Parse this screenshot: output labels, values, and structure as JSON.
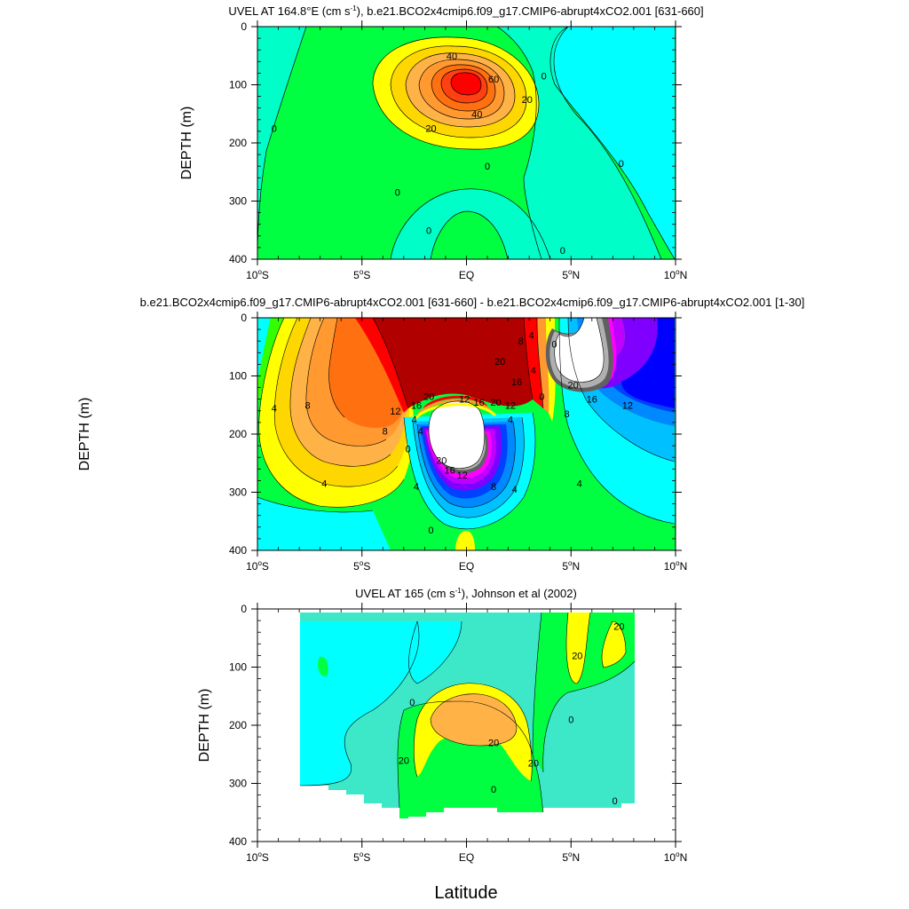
{
  "figure": {
    "x_title": "Latitude"
  },
  "chart_data": [
    {
      "type": "heatmap",
      "title": "UVEL AT 164.8°E (cm s-1), b.e21.BCO2x4cmip6.f09_g17.CMIP6-abrupt4xCO2.001 [631-660]",
      "title_main": "UVEL AT 164.8°E (cm s",
      "title_sup": "-1",
      "title_tail": "), b.e21.BCO2x4cmip6.f09_g17.CMIP6-abrupt4xCO2.001 [631-660]",
      "xlabel": "",
      "ylabel": "DEPTH (m)",
      "xlim": [
        -10,
        10
      ],
      "ylim": [
        400,
        0
      ],
      "x_ticks": [
        {
          "value": -10,
          "main": "10",
          "sup": "o",
          "tail": "S"
        },
        {
          "value": -5,
          "main": "5",
          "sup": "o",
          "tail": "S"
        },
        {
          "value": 0,
          "main": "EQ",
          "sup": "",
          "tail": ""
        },
        {
          "value": 5,
          "main": "5",
          "sup": "o",
          "tail": "N"
        },
        {
          "value": 10,
          "main": "10",
          "sup": "o",
          "tail": "N"
        }
      ],
      "y_ticks": [
        0,
        100,
        200,
        300,
        400
      ],
      "contour_labels": [
        {
          "text": "40",
          "lat": -0.7,
          "depth": 50
        },
        {
          "text": "60",
          "lat": 1.3,
          "depth": 90
        },
        {
          "text": "40",
          "lat": 0.5,
          "depth": 150
        },
        {
          "text": "20",
          "lat": -1.7,
          "depth": 175
        },
        {
          "text": "20",
          "lat": 2.9,
          "depth": 125
        },
        {
          "text": "0",
          "lat": 3.7,
          "depth": 85
        },
        {
          "text": "0",
          "lat": -9.2,
          "depth": 175
        },
        {
          "text": "0",
          "lat": -3.3,
          "depth": 285
        },
        {
          "text": "0",
          "lat": 1.0,
          "depth": 240
        },
        {
          "text": "0",
          "lat": -1.8,
          "depth": 350
        },
        {
          "text": "0",
          "lat": 4.6,
          "depth": 385
        },
        {
          "text": "0",
          "lat": 7.4,
          "depth": 235
        }
      ]
    },
    {
      "type": "heatmap",
      "title": "b.e21.BCO2x4cmip6.f09_g17.CMIP6-abrupt4xCO2.001 [631-660] - b.e21.BCO2x4cmip6.f09_g17.CMIP6-abrupt4xCO2.001 [1-30]",
      "title_main": "b.e21.BCO2x4cmip6.f09_g17.CMIP6-abrupt4xCO2.001 [631-660] - b.e21.BCO2x4cmip6.f09_g17.CMIP6-abrupt4xCO2.001 [1-30]",
      "title_sup": "",
      "title_tail": "",
      "xlabel": "",
      "ylabel": "DEPTH (m)",
      "xlim": [
        -10,
        10
      ],
      "ylim": [
        400,
        0
      ],
      "x_ticks": [
        {
          "value": -10,
          "main": "10",
          "sup": "o",
          "tail": "S"
        },
        {
          "value": -5,
          "main": "5",
          "sup": "o",
          "tail": "S"
        },
        {
          "value": 0,
          "main": "EQ",
          "sup": "",
          "tail": ""
        },
        {
          "value": 5,
          "main": "5",
          "sup": "o",
          "tail": "N"
        },
        {
          "value": 10,
          "main": "10",
          "sup": "o",
          "tail": "N"
        }
      ],
      "y_ticks": [
        0,
        100,
        200,
        300,
        400
      ],
      "contour_labels": [
        {
          "text": "4",
          "lat": -9.2,
          "depth": 155
        },
        {
          "text": "8",
          "lat": -7.6,
          "depth": 150
        },
        {
          "text": "12",
          "lat": -3.4,
          "depth": 160
        },
        {
          "text": "16",
          "lat": -2.4,
          "depth": 150
        },
        {
          "text": "20",
          "lat": -1.8,
          "depth": 135
        },
        {
          "text": "8",
          "lat": -3.9,
          "depth": 195
        },
        {
          "text": "4",
          "lat": -2.5,
          "depth": 175
        },
        {
          "text": "4",
          "lat": -6.8,
          "depth": 285
        },
        {
          "text": "0",
          "lat": -2.8,
          "depth": 225
        },
        {
          "text": "4",
          "lat": -2.2,
          "depth": 195
        },
        {
          "text": "12",
          "lat": -0.1,
          "depth": 140
        },
        {
          "text": "16",
          "lat": 0.6,
          "depth": 145
        },
        {
          "text": "20",
          "lat": 1.4,
          "depth": 145
        },
        {
          "text": "12",
          "lat": 2.1,
          "depth": 150
        },
        {
          "text": "4",
          "lat": 2.1,
          "depth": 175
        },
        {
          "text": "20",
          "lat": -1.2,
          "depth": 245
        },
        {
          "text": "16",
          "lat": -0.8,
          "depth": 262
        },
        {
          "text": "12",
          "lat": -0.2,
          "depth": 270
        },
        {
          "text": "8",
          "lat": 1.3,
          "depth": 290
        },
        {
          "text": "4",
          "lat": 2.3,
          "depth": 295
        },
        {
          "text": "4",
          "lat": -2.4,
          "depth": 290
        },
        {
          "text": "0",
          "lat": -1.7,
          "depth": 365
        },
        {
          "text": "20",
          "lat": 1.6,
          "depth": 75
        },
        {
          "text": "8",
          "lat": 2.6,
          "depth": 40
        },
        {
          "text": "4",
          "lat": 3.1,
          "depth": 30
        },
        {
          "text": "16",
          "lat": 2.4,
          "depth": 110
        },
        {
          "text": "4",
          "lat": 3.2,
          "depth": 90
        },
        {
          "text": "0",
          "lat": 3.6,
          "depth": 135
        },
        {
          "text": "0",
          "lat": 4.2,
          "depth": 45
        },
        {
          "text": "20",
          "lat": 5.1,
          "depth": 115
        },
        {
          "text": "16",
          "lat": 6.0,
          "depth": 140
        },
        {
          "text": "12",
          "lat": 7.7,
          "depth": 150
        },
        {
          "text": "8",
          "lat": 4.8,
          "depth": 165
        },
        {
          "text": "4",
          "lat": 5.4,
          "depth": 285
        }
      ]
    },
    {
      "type": "heatmap",
      "title": "UVEL AT 165 (cm s-1), Johnson et al (2002)",
      "title_main": "UVEL AT 165 (cm s",
      "title_sup": "-1",
      "title_tail": "), Johnson et al (2002)",
      "xlabel": "Latitude",
      "ylabel": "DEPTH (m)",
      "xlim": [
        -10,
        10
      ],
      "ylim": [
        400,
        0
      ],
      "x_ticks": [
        {
          "value": -10,
          "main": "10",
          "sup": "o",
          "tail": "S"
        },
        {
          "value": -5,
          "main": "5",
          "sup": "o",
          "tail": "S"
        },
        {
          "value": 0,
          "main": "EQ",
          "sup": "",
          "tail": ""
        },
        {
          "value": 5,
          "main": "5",
          "sup": "o",
          "tail": "N"
        },
        {
          "value": 10,
          "main": "10",
          "sup": "o",
          "tail": "N"
        }
      ],
      "y_ticks": [
        0,
        100,
        200,
        300,
        400
      ],
      "contour_labels": [
        {
          "text": "20",
          "lat": 7.3,
          "depth": 30
        },
        {
          "text": "20",
          "lat": 5.3,
          "depth": 80
        },
        {
          "text": "0",
          "lat": -2.6,
          "depth": 160
        },
        {
          "text": "0",
          "lat": 5.0,
          "depth": 190
        },
        {
          "text": "20",
          "lat": 1.3,
          "depth": 230
        },
        {
          "text": "20",
          "lat": -3.0,
          "depth": 260
        },
        {
          "text": "20",
          "lat": 3.2,
          "depth": 265
        },
        {
          "text": "0",
          "lat": 1.3,
          "depth": 310
        },
        {
          "text": "0",
          "lat": 7.1,
          "depth": 330
        }
      ]
    }
  ],
  "colors": {
    "green": "#00ff40",
    "bright_green": "#33ff00",
    "aqua": "#00ffc8",
    "cyan": "#00ffff",
    "teal_light": "#3ce8c8",
    "yellow": "#ffff00",
    "yellow_orange": "#ffd700",
    "orange_light": "#ffb347",
    "orange": "#ff9930",
    "orange_dark": "#ff7010",
    "red_orange": "#ff4010",
    "red": "#ff0000",
    "dark_red": "#b00000",
    "sky": "#00c0ff",
    "blue_light": "#0088ff",
    "blue": "#0040ff",
    "deep_blue": "#0000ff",
    "violet": "#8000ff",
    "purple": "#c000ff",
    "magenta": "#ff00ff",
    "gray_dark": "#606060",
    "gray_light": "#b0b0b0"
  }
}
